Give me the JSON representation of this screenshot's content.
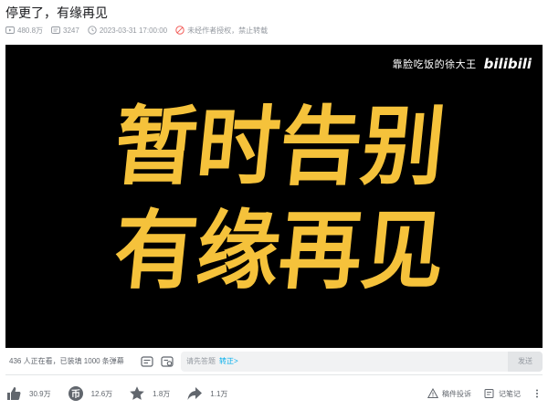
{
  "title": "停更了，有缘再见",
  "meta": {
    "views": "480.8万",
    "danmaku": "3247",
    "datetime": "2023-03-31 17:00:00",
    "notice": "未经作者授权，禁止转载"
  },
  "player": {
    "watermark_text": "靠脸吃饭的徐大王",
    "watermark_logo": "bilibili",
    "line1": "暂时告别",
    "line2": "有缘再见"
  },
  "danmaku_bar": {
    "watching": "436 人正在看，已装填 1000 条弹幕",
    "placeholder": "请先答题",
    "link": "转正>",
    "send": "发送"
  },
  "actions": {
    "like": "30.9万",
    "coin": "12.6万",
    "favorite": "1.8万",
    "share": "1.1万",
    "report": "稿件投诉",
    "notes": "记笔记"
  },
  "colors": {
    "accent": "#00aeec",
    "headline": "#f5c23b",
    "notice_icon": "#f25d59"
  }
}
